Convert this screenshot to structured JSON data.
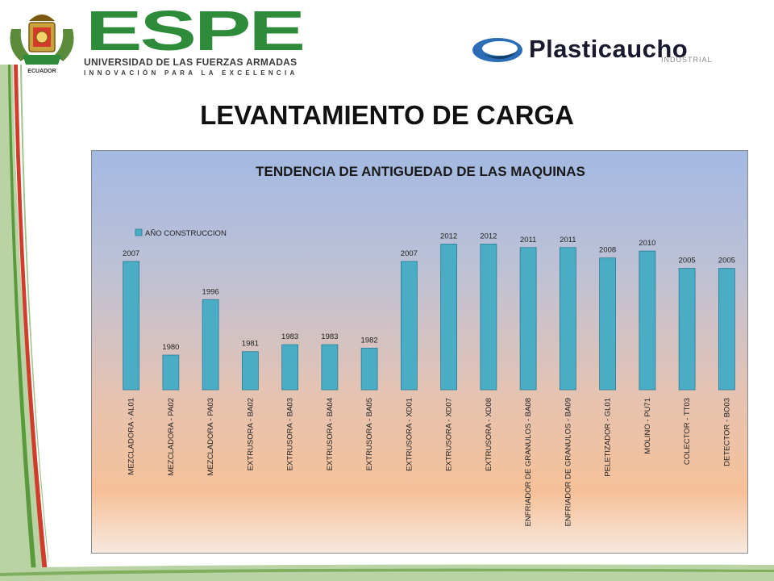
{
  "header": {
    "espe_logo_text": "ESPE",
    "espe_subtitle": "UNIVERSIDAD DE LAS FUERZAS ARMADAS",
    "espe_tagline": "INNOVACIÓN PARA LA EXCELENCIA",
    "crest_text": "ECUADOR",
    "plasticaucho_name": "Plasticaucho",
    "plasticaucho_sub": "INDUSTRIAL"
  },
  "slide_title": "LEVANTAMIENTO DE CARGA",
  "colors": {
    "bar_fill": "#4bacc6",
    "bar_stroke": "#2a7d95",
    "espe_green": "#2e8b3a",
    "swoosh_green": "#7fae5e"
  },
  "chart_data": {
    "type": "bar",
    "title": "TENDENCIA DE ANTIGUEDAD DE LAS MAQUINAS",
    "legend_position": "top-left",
    "grid": false,
    "categories": [
      "MEZCLADORA - AL01",
      "MEZCLADORA - PA02",
      "MEZCLADORA - PA03",
      "EXTRUSORA - BA02",
      "EXTRUSORA - BA03",
      "EXTRUSORA - BA04",
      "EXTRUSORA - BA05",
      "EXTRUSORA - XD01",
      "EXTRUSORA - XD07",
      "EXTRUSORA - XD08",
      "ENFRIADOR DE GRANULOS - BA08",
      "ENFRIADOR DE GRANULOS - BA09",
      "PELETIZADOR - GL01",
      "MOLINO - PU71",
      "COLECTOR - TT03",
      "DETECTOR - BO03"
    ],
    "series": [
      {
        "name": "AÑO CONSTRUCCION",
        "values": [
          2007,
          1980,
          1996,
          1981,
          1983,
          1983,
          1982,
          2007,
          2012,
          2012,
          2011,
          2011,
          2008,
          2010,
          2005,
          2005
        ]
      }
    ],
    "ylim": [
      1970,
      2017
    ]
  }
}
